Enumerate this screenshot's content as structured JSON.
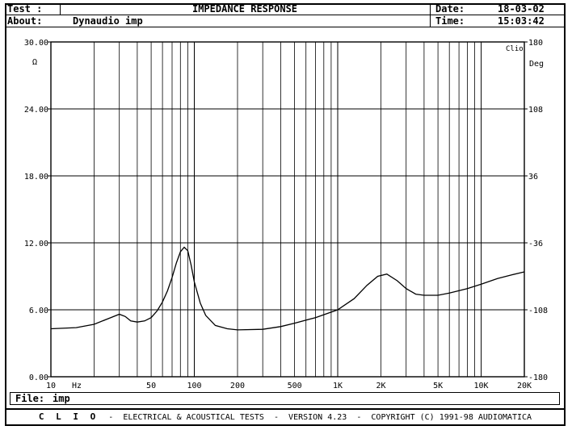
{
  "header": {
    "test_label": "Test :",
    "about_label": "About:",
    "about_value": "Dynaudio imp",
    "title": "IMPEDANCE RESPONSE",
    "date_label": "Date:",
    "date_value": "18-03-02",
    "time_label": "Time:",
    "time_value": "15:03:42"
  },
  "file": {
    "label": "File:",
    "value": "imp"
  },
  "footer": {
    "brand": "C L I O",
    "text": "-  ELECTRICAL & ACOUSTICAL TESTS  -  VERSION 4.23  -  COPYRIGHT (C) 1991-98 AUDIOMATICA"
  },
  "logo_text": "Clio",
  "colors": {
    "trace": "#000000",
    "grid": "#000000",
    "background": "#ffffff"
  },
  "chart_data": {
    "type": "line",
    "title": "IMPEDANCE RESPONSE",
    "x_scale": "log",
    "xlim": [
      10,
      20000
    ],
    "ylim": [
      0,
      30
    ],
    "ylabel": "Ω",
    "ylabel_right": "Deg",
    "xlabel": "Hz",
    "grid": true,
    "y_ticks": [
      0,
      6,
      12,
      18,
      24,
      30
    ],
    "y_tick_labels": [
      "0.00",
      "6.00",
      "12.00",
      "18.00",
      "24.00",
      "30.00"
    ],
    "y2_tick_labels": [
      "-180",
      "-108",
      "-36",
      "36",
      "108",
      "180"
    ],
    "x_tick_labels": [
      {
        "x": 10,
        "label": "10"
      },
      {
        "x": 50,
        "label": "50"
      },
      {
        "x": 100,
        "label": "100"
      },
      {
        "x": 200,
        "label": "200"
      },
      {
        "x": 500,
        "label": "500"
      },
      {
        "x": 1000,
        "label": "1K"
      },
      {
        "x": 2000,
        "label": "2K"
      },
      {
        "x": 5000,
        "label": "5K"
      },
      {
        "x": 10000,
        "label": "10K"
      },
      {
        "x": 20000,
        "label": "20K"
      }
    ],
    "series": [
      {
        "x": [
          10,
          15,
          20,
          25,
          30,
          33,
          36,
          40,
          45,
          50,
          55,
          60,
          65,
          70,
          75,
          80,
          85,
          90,
          95,
          100,
          110,
          120,
          140,
          170,
          200,
          300,
          400,
          500,
          700,
          1000,
          1300,
          1600,
          1900,
          2200,
          2600,
          3000,
          3500,
          4000,
          5000,
          6000,
          8000,
          10000,
          13000,
          16000,
          20000
        ],
        "y": [
          4.3,
          4.4,
          4.7,
          5.2,
          5.6,
          5.4,
          5.0,
          4.9,
          5.0,
          5.3,
          5.9,
          6.7,
          7.7,
          8.9,
          10.2,
          11.2,
          11.6,
          11.3,
          10.0,
          8.5,
          6.6,
          5.5,
          4.6,
          4.3,
          4.2,
          4.25,
          4.5,
          4.8,
          5.3,
          6.0,
          7.0,
          8.2,
          9.0,
          9.2,
          8.6,
          7.9,
          7.4,
          7.3,
          7.3,
          7.5,
          7.9,
          8.3,
          8.8,
          9.1,
          9.4
        ]
      }
    ]
  }
}
